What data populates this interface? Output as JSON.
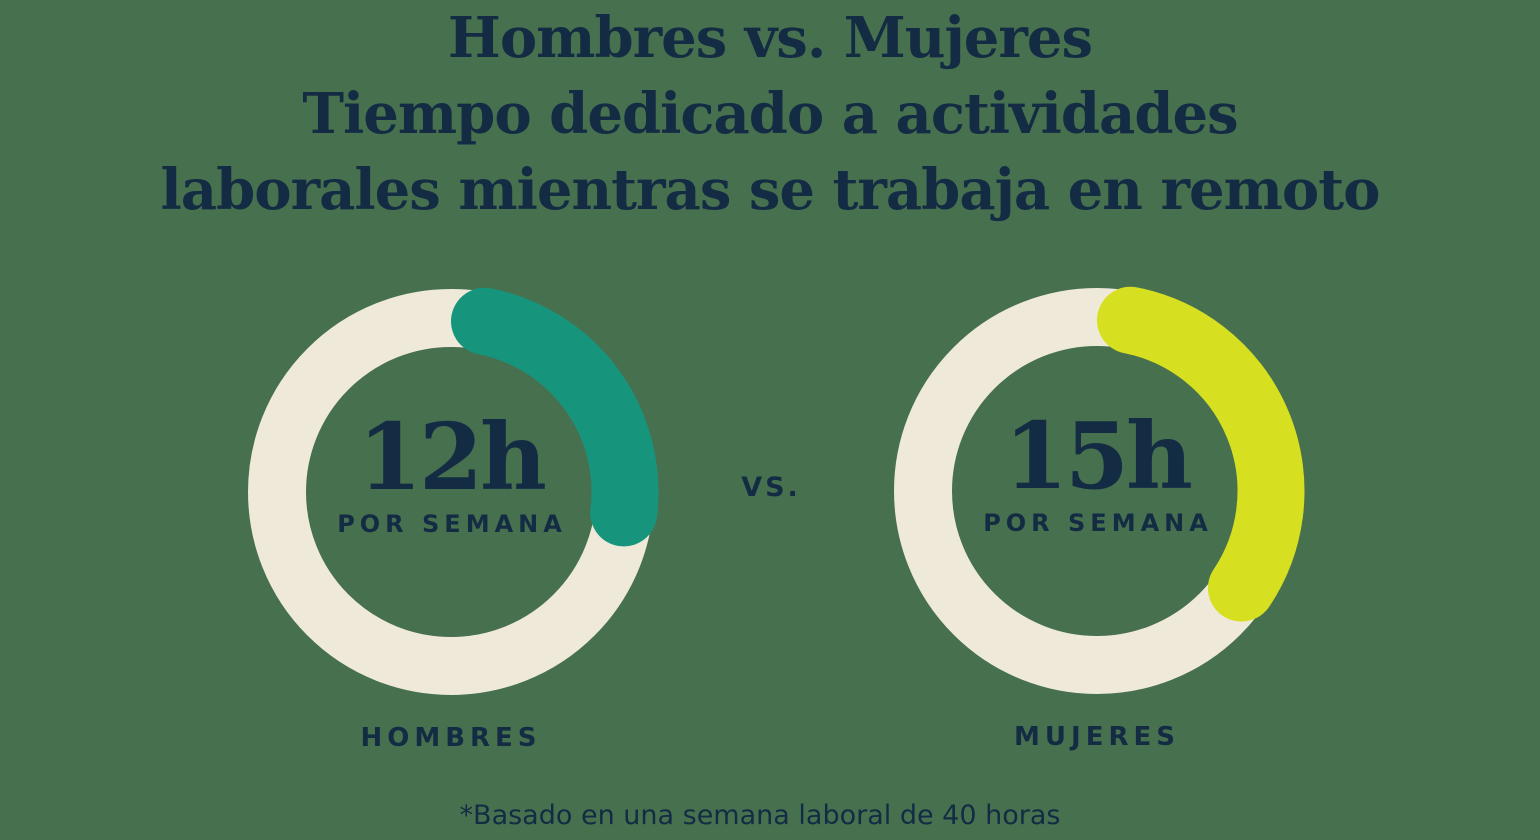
{
  "title": {
    "lines": [
      "Hombres vs. Mujeres",
      "Tiempo dedicado a actividades",
      "laborales mientras se trabaja en remoto"
    ]
  },
  "comparison": {
    "vs_label": "VS."
  },
  "footnote": "*Basado en una semana laboral de 40 horas",
  "colors": {
    "background": "#47704F",
    "ink": "#132C44",
    "ring_track": "#EFE9DA",
    "hombres_arc": "#17947C",
    "mujeres_arc": "#D6E021"
  },
  "chart_data": {
    "type": "pie",
    "subtype": "donut-progress-pair",
    "unit": "horas por semana",
    "total_reference": 40,
    "title": "Hombres vs. Mujeres — Tiempo dedicado a actividades laborales mientras se trabaja en remoto",
    "footnote": "*Basado en una semana laboral de 40 horas",
    "legend_position": "below-each-donut",
    "series": [
      {
        "name": "HOMBRES",
        "value": 12,
        "fraction": 0.3,
        "value_label": "12h",
        "unit_label": "POR SEMANA",
        "arc_color": "#17947C",
        "track_color": "#EFE9DA"
      },
      {
        "name": "MUJERES",
        "value": 15,
        "fraction": 0.375,
        "value_label": "15h",
        "unit_label": "POR SEMANA",
        "arc_color": "#D6E021",
        "track_color": "#EFE9DA"
      }
    ]
  }
}
